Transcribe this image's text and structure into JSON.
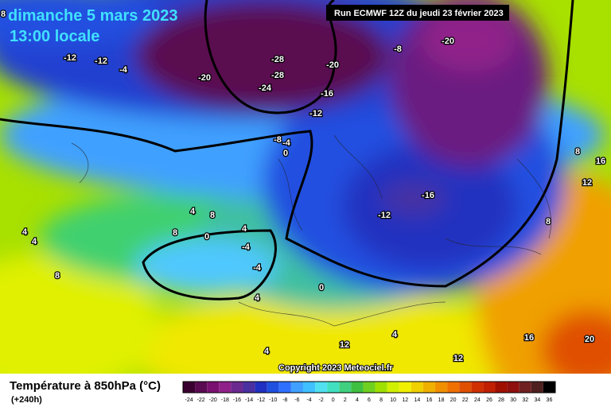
{
  "header": {
    "date": "dimanche 5 mars 2023",
    "time": "13:00 locale",
    "run": "Run ECMWF 12Z du jeudi 23 février 2023"
  },
  "map": {
    "corner_label": "8",
    "contour_labels": [
      "-12",
      "-12",
      "-4",
      "-20",
      "-28",
      "-28",
      "-24",
      "-20",
      "-16",
      "-12",
      "-8",
      "-20",
      "-8",
      "-4",
      "0",
      "-16",
      "-12",
      "4",
      "8",
      "8",
      "0",
      "4",
      "-4",
      "-4",
      "4",
      "4",
      "8",
      "0",
      "4",
      "4",
      "4",
      "12",
      "12",
      "16",
      "20",
      "8",
      "16",
      "12",
      "8"
    ],
    "copyright": "Copyright 2023 Meteociel.fr"
  },
  "footer": {
    "title": "Température à 850hPa (°C)",
    "lead": "(+240h)"
  },
  "legend": {
    "ticks": [
      "-24",
      "-22",
      "-20",
      "-18",
      "-16",
      "-14",
      "-12",
      "-10",
      "-8",
      "-6",
      "-4",
      "-2",
      "0",
      "2",
      "4",
      "6",
      "8",
      "10",
      "12",
      "14",
      "16",
      "18",
      "20",
      "22",
      "24",
      "26",
      "28",
      "30",
      "32",
      "34",
      "36"
    ],
    "colors": [
      "#3a0030",
      "#5a0a50",
      "#7a1070",
      "#90208a",
      "#6a2a90",
      "#4a30a0",
      "#2030c0",
      "#2050e0",
      "#3070ff",
      "#40a0ff",
      "#40c0ff",
      "#50e0f0",
      "#40e0c0",
      "#40d080",
      "#40c040",
      "#70d020",
      "#a0e000",
      "#d0f000",
      "#f0f000",
      "#f0d000",
      "#f0b000",
      "#f09000",
      "#f07000",
      "#e05000",
      "#d03000",
      "#c02000",
      "#a01000",
      "#901010",
      "#702020",
      "#502020",
      "#000000"
    ]
  }
}
